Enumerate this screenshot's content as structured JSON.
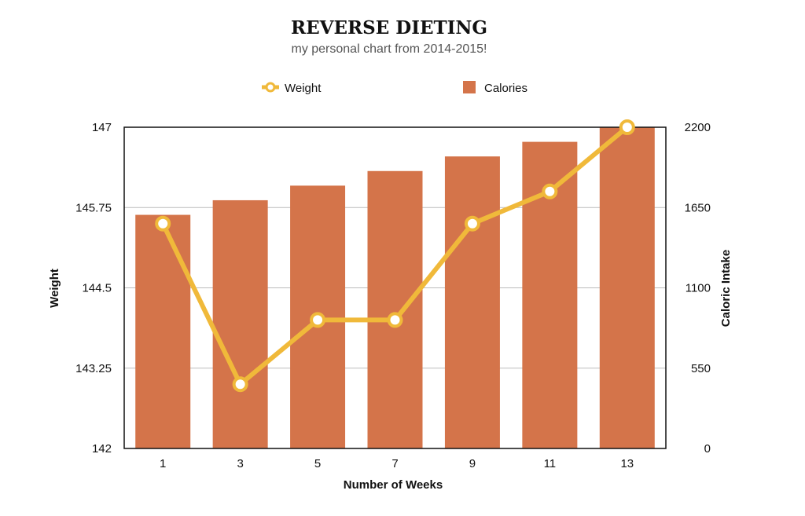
{
  "chart_data": {
    "type": "bar+line",
    "title": "REVERSE DIETING",
    "subtitle": "my personal chart from 2014-2015!",
    "xlabel": "Number of Weeks",
    "ylabel_left": "Weight",
    "ylabel_right": "Caloric Intake",
    "categories": [
      "1",
      "3",
      "5",
      "7",
      "9",
      "11",
      "13"
    ],
    "y_left": {
      "min": 142,
      "max": 147,
      "ticks": [
        "142",
        "143.25",
        "144.5",
        "145.75",
        "147"
      ]
    },
    "y_right": {
      "min": 0,
      "max": 2200,
      "ticks": [
        "0",
        "550",
        "1100",
        "1650",
        "2200"
      ]
    },
    "grid": true,
    "legend_position": "top",
    "series": [
      {
        "name": "Weight",
        "type": "line",
        "axis": "left",
        "color": "#f0b93a",
        "values": [
          145.5,
          143.0,
          144.0,
          144.0,
          145.5,
          146.0,
          147.0
        ]
      },
      {
        "name": "Calories",
        "type": "bar",
        "axis": "right",
        "color": "#d4744a",
        "values": [
          1600,
          1700,
          1800,
          1900,
          2000,
          2100,
          2200
        ]
      }
    ]
  }
}
